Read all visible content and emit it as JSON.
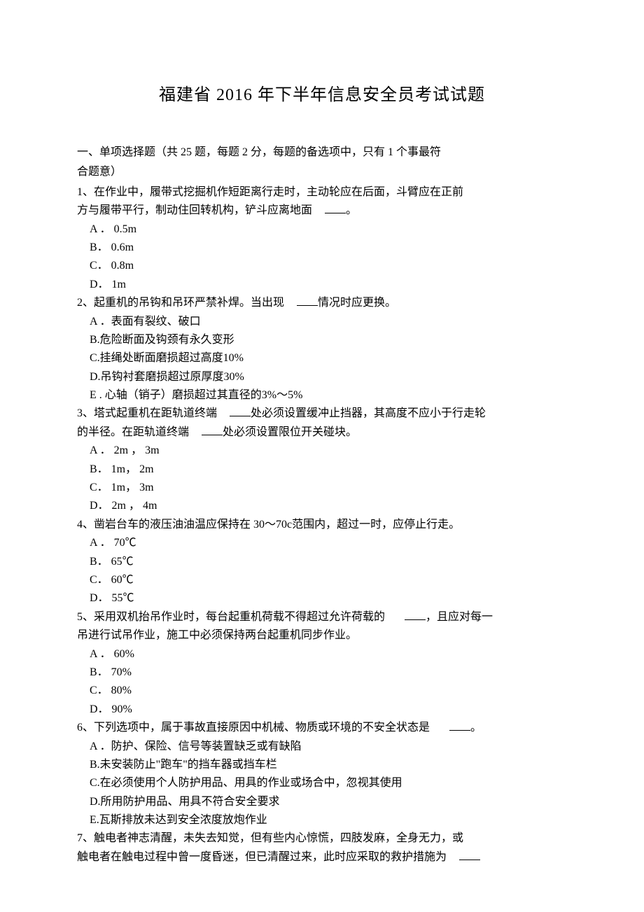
{
  "title": "福建省 2016 年下半年信息安全员考试试题",
  "section_intro_l1": "一、单项选择题（共    25 题，每题 2 分，每题的备选项中，只有      1 个事最符",
  "section_intro_l2": "合题意）",
  "q1": {
    "l1": "1、在作业中，履带式挖掘机作短距离行走时，主动轮应在后面，斗臂应在正前",
    "l2_a": "方与履带平行，制动住回转机构，铲斗应离地面",
    "l2_b": "。",
    "a": "A ．  0.5m",
    "b": "B．  0.6m",
    "c": "C．  0.8m",
    "d": "D．  1m"
  },
  "q2": {
    "l1_a": "2、起重机的吊钩和吊环严禁补焊。当出现",
    "l1_b": "情况时应更换。",
    "a": "A ．表面有裂纹、破口",
    "b": "B.危险断面及钩颈有永久变形",
    "c": "C.挂绳处断面磨损超过高度10%",
    "d": "D.吊钩衬套磨损超过原厚度30%",
    "e": "E . 心轴（销子）磨损超过其直径的3%〜5%"
  },
  "q3": {
    "l1_a": "3、塔式起重机在距轨道终端",
    "l1_b": "处必须设置缓冲止挡器，其高度不应小于行走轮",
    "l2_a": "的半径。在距轨道终端",
    "l2_b": "处必须设置限位开关碰块。",
    "a": "A ．  2m ，  3m",
    "b": "B．  1m，  2m",
    "c": "C．  1m，  3m",
    "d": "D．  2m ，  4m"
  },
  "q4": {
    "l1": "4、凿岩台车的液压油油温应保持在    30〜70c范围内，超过一时，应停止行走。",
    "a": "A ．  70℃",
    "b": "B．  65℃",
    "c": "C．  60℃",
    "d": "D．  55℃"
  },
  "q5": {
    "l1_a": "5、采用双机抬吊作业时，每台起重机荷载不得超过允许荷载的",
    "l1_b": "，且应对每一",
    "l2": "吊进行试吊作业，施工中必须保持两台起重机同步作业。",
    "a": "A ．  60%",
    "b": "B．  70%",
    "c": "C．  80%",
    "d": "D．  90%"
  },
  "q6": {
    "l1_a": "6、下列选项中，属于事故直接原因中机械、物质或环境的不安全状态是",
    "l1_b": "。",
    "a": "A ．防护、保险、信号等装置缺乏或有缺陷",
    "b": "B.未安装防止\"跑车\"的挡车器或挡车栏",
    "c": "C.在必须使用个人防护用品、用具的作业或场合中，忽视其使用",
    "d": "D.所用防护用品、用具不符合安全要求",
    "e": "E.瓦斯排放未达到安全浓度放炮作业"
  },
  "q7": {
    "l1": "7、触电者神志清醒，未失去知觉，但有些内心惊慌，四肢发麻，全身无力，或",
    "l2": "触电者在触电过程中曾一度昏迷，但已清醒过来，此时应采取的救护措施为"
  }
}
